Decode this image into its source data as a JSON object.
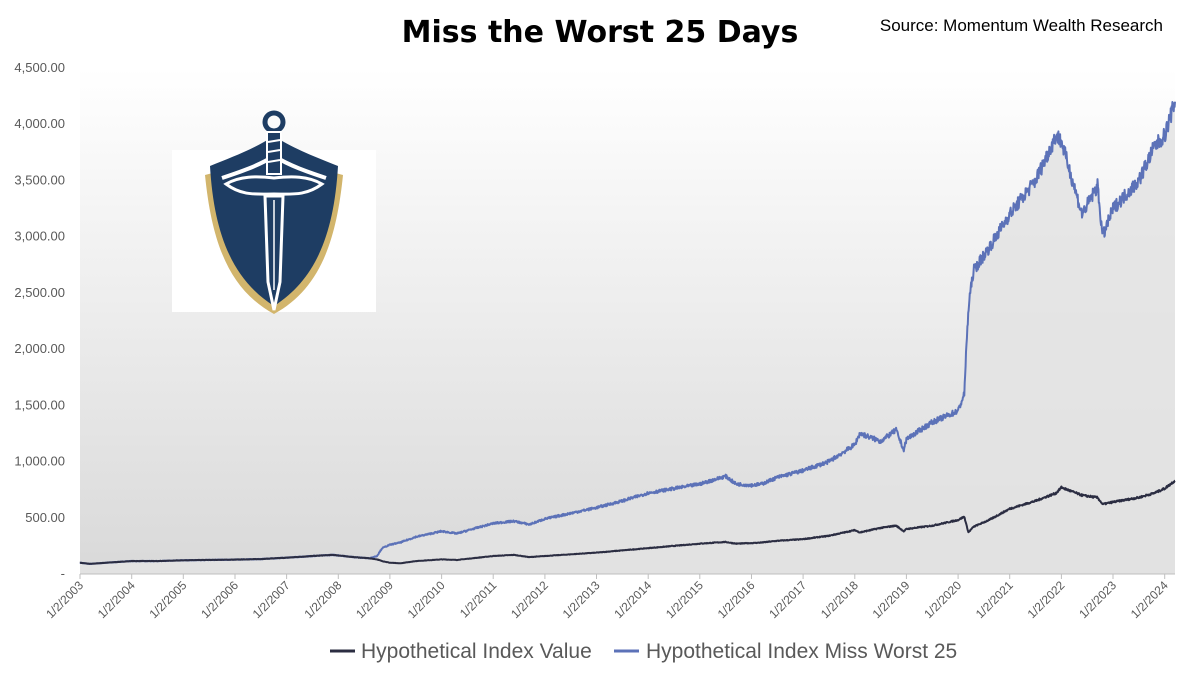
{
  "chart_data": {
    "type": "area",
    "title": "Miss the Worst 25 Days",
    "source_note": "Source: Momentum Wealth Research",
    "xlabel": "",
    "ylabel": "",
    "ylim": [
      0,
      4500
    ],
    "y_ticks": [
      "-",
      "500.00",
      "1,000.00",
      "1,500.00",
      "2,000.00",
      "2,500.00",
      "3,000.00",
      "3,500.00",
      "4,000.00",
      "4,500.00"
    ],
    "y_tick_values": [
      0,
      500,
      1000,
      1500,
      2000,
      2500,
      3000,
      3500,
      4000,
      4500
    ],
    "x_ticks": [
      "1/2/2003",
      "1/2/2004",
      "1/2/2005",
      "1/2/2006",
      "1/2/2007",
      "1/2/2008",
      "1/2/2009",
      "1/2/2010",
      "1/2/2011",
      "1/2/2012",
      "1/2/2013",
      "1/2/2014",
      "1/2/2015",
      "1/2/2016",
      "1/2/2017",
      "1/2/2018",
      "1/2/2019",
      "1/2/2020",
      "1/2/2021",
      "1/2/2022",
      "1/2/2023",
      "1/2/2024"
    ],
    "x_tick_values": [
      2003,
      2004,
      2005,
      2006,
      2007,
      2008,
      2009,
      2010,
      2011,
      2012,
      2013,
      2014,
      2015,
      2016,
      2017,
      2018,
      2019,
      2020,
      2021,
      2022,
      2023,
      2024
    ],
    "xlim": [
      2003,
      2024.2
    ],
    "legend_position": "bottom",
    "grid": false,
    "series": [
      {
        "name": "Hypothetical Index Value",
        "color": "#2b2d42",
        "x": [
          2003.0,
          2003.2,
          2003.5,
          2004.0,
          2004.5,
          2005.0,
          2005.5,
          2006.0,
          2006.5,
          2007.0,
          2007.5,
          2007.9,
          2008.3,
          2008.6,
          2008.75,
          2008.85,
          2009.0,
          2009.2,
          2009.5,
          2010.0,
          2010.3,
          2010.6,
          2011.0,
          2011.4,
          2011.7,
          2012.0,
          2012.5,
          2013.0,
          2013.5,
          2014.0,
          2014.5,
          2015.0,
          2015.5,
          2015.7,
          2016.0,
          2016.2,
          2016.5,
          2017.0,
          2017.5,
          2018.0,
          2018.1,
          2018.5,
          2018.8,
          2018.95,
          2019.0,
          2019.5,
          2020.0,
          2020.12,
          2020.2,
          2020.3,
          2020.6,
          2021.0,
          2021.5,
          2021.9,
          2022.0,
          2022.4,
          2022.7,
          2022.8,
          2023.0,
          2023.5,
          2023.8,
          2024.0,
          2024.2
        ],
        "values": [
          100,
          90,
          100,
          115,
          115,
          122,
          125,
          128,
          133,
          145,
          160,
          170,
          150,
          140,
          130,
          115,
          100,
          95,
          115,
          130,
          125,
          140,
          160,
          170,
          150,
          160,
          175,
          190,
          210,
          230,
          250,
          270,
          285,
          270,
          275,
          280,
          295,
          310,
          340,
          390,
          370,
          410,
          430,
          380,
          400,
          430,
          480,
          510,
          370,
          420,
          480,
          580,
          650,
          720,
          770,
          700,
          680,
          620,
          640,
          680,
          720,
          760,
          830
        ]
      },
      {
        "name": "Hypothetical Index Miss Worst 25",
        "color": "#5c72b8",
        "x": [
          2003.0,
          2003.2,
          2003.5,
          2004.0,
          2004.5,
          2005.0,
          2005.5,
          2006.0,
          2006.5,
          2007.0,
          2007.5,
          2007.9,
          2008.3,
          2008.6,
          2008.75,
          2008.85,
          2009.0,
          2009.2,
          2009.5,
          2010.0,
          2010.3,
          2010.6,
          2011.0,
          2011.4,
          2011.7,
          2012.0,
          2012.5,
          2013.0,
          2013.5,
          2014.0,
          2014.5,
          2015.0,
          2015.5,
          2015.7,
          2016.0,
          2016.2,
          2016.5,
          2017.0,
          2017.5,
          2018.0,
          2018.1,
          2018.5,
          2018.8,
          2018.95,
          2019.0,
          2019.5,
          2020.0,
          2020.12,
          2020.18,
          2020.22,
          2020.3,
          2020.6,
          2021.0,
          2021.5,
          2021.9,
          2022.0,
          2022.4,
          2022.7,
          2022.8,
          2023.0,
          2023.5,
          2023.8,
          2024.0,
          2024.2
        ],
        "values": [
          100,
          90,
          100,
          115,
          115,
          122,
          125,
          128,
          133,
          145,
          160,
          170,
          150,
          140,
          160,
          230,
          260,
          280,
          330,
          380,
          360,
          400,
          450,
          470,
          440,
          490,
          540,
          590,
          650,
          720,
          760,
          800,
          870,
          800,
          790,
          800,
          860,
          920,
          1000,
          1150,
          1250,
          1180,
          1280,
          1100,
          1200,
          1350,
          1450,
          1600,
          2200,
          2450,
          2700,
          2900,
          3200,
          3500,
          3900,
          3850,
          3200,
          3450,
          3000,
          3250,
          3500,
          3800,
          3900,
          4200
        ]
      }
    ]
  }
}
